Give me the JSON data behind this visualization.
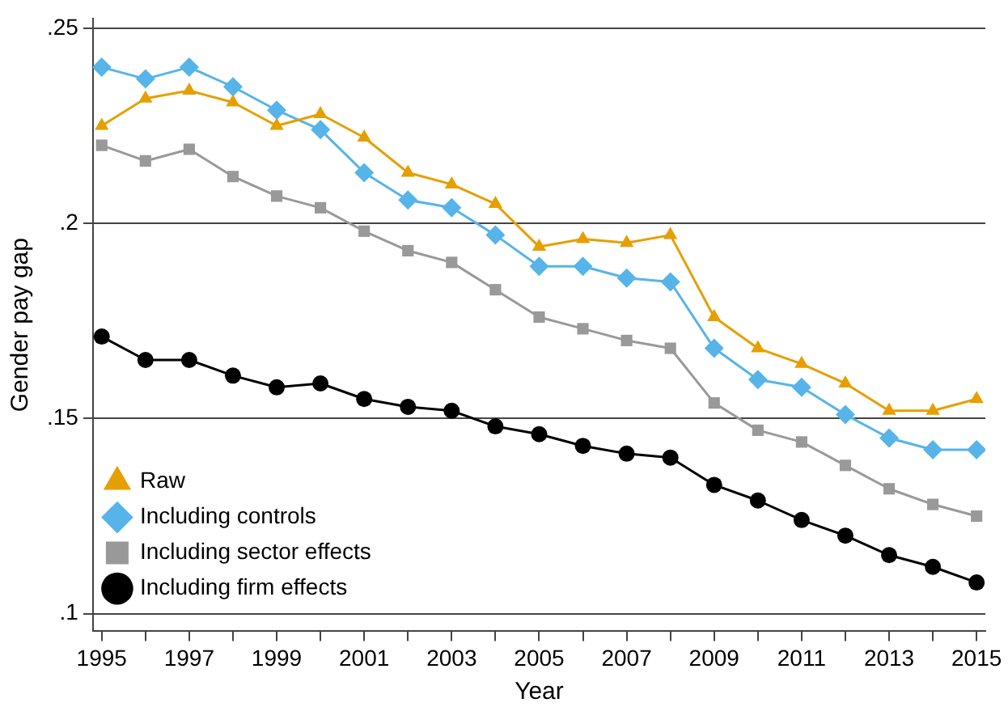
{
  "chart_data": {
    "type": "line",
    "xlabel": "Year",
    "ylabel": "Gender pay gap",
    "x": [
      1995,
      1996,
      1997,
      1998,
      1999,
      2000,
      2001,
      2002,
      2003,
      2004,
      2005,
      2006,
      2007,
      2008,
      2009,
      2010,
      2011,
      2012,
      2013,
      2014,
      2015
    ],
    "series": [
      {
        "name": "Raw",
        "color": "#e69f00",
        "marker": "triangle",
        "values": [
          0.225,
          0.232,
          0.234,
          0.231,
          0.225,
          0.228,
          0.222,
          0.213,
          0.21,
          0.205,
          0.194,
          0.196,
          0.195,
          0.197,
          0.176,
          0.168,
          0.164,
          0.159,
          0.152,
          0.152,
          0.155
        ]
      },
      {
        "name": "Including controls",
        "color": "#56b4e9",
        "marker": "diamond",
        "values": [
          0.24,
          0.237,
          0.24,
          0.235,
          0.229,
          0.224,
          0.213,
          0.206,
          0.204,
          0.197,
          0.189,
          0.189,
          0.186,
          0.185,
          0.168,
          0.16,
          0.158,
          0.151,
          0.145,
          0.142,
          0.142
        ]
      },
      {
        "name": "Including sector effects",
        "color": "#999999",
        "marker": "square",
        "values": [
          0.22,
          0.216,
          0.219,
          0.212,
          0.207,
          0.204,
          0.198,
          0.193,
          0.19,
          0.183,
          0.176,
          0.173,
          0.17,
          0.168,
          0.154,
          0.147,
          0.144,
          0.138,
          0.132,
          0.128,
          0.125
        ]
      },
      {
        "name": "Including firm effects",
        "color": "#000000",
        "marker": "circle",
        "values": [
          0.171,
          0.165,
          0.165,
          0.161,
          0.158,
          0.159,
          0.155,
          0.153,
          0.152,
          0.148,
          0.146,
          0.143,
          0.141,
          0.14,
          0.133,
          0.129,
          0.124,
          0.12,
          0.115,
          0.112,
          0.108
        ]
      }
    ],
    "xlim": [
      1994.8,
      2015.2
    ],
    "xticks": [
      1995,
      {
        "value": 1996,
        "label": null
      },
      1997,
      {
        "value": 1998,
        "label": null
      },
      1999,
      {
        "value": 2000,
        "label": null
      },
      2001,
      {
        "value": 2002,
        "label": null
      },
      2003,
      {
        "value": 2004,
        "label": null
      },
      2005,
      {
        "value": 2006,
        "label": null
      },
      2007,
      {
        "value": 2008,
        "label": null
      },
      2009,
      {
        "value": 2010,
        "label": null
      },
      2011,
      {
        "value": 2012,
        "label": null
      },
      2013,
      {
        "value": 2014,
        "label": null
      },
      2015
    ],
    "ylim": [
      0.0955,
      0.2525
    ],
    "yticks": [
      {
        "value": 0.1,
        "label": ".1"
      },
      {
        "value": 0.15,
        "label": ".15"
      },
      {
        "value": 0.2,
        "label": ".2"
      },
      {
        "value": 0.25,
        "label": ".25"
      }
    ],
    "grid": "y",
    "legend": "bottom left",
    "line_style": "solid"
  }
}
